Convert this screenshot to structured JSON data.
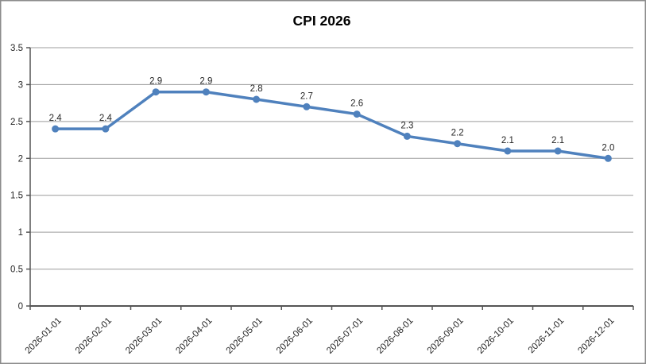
{
  "chart_data": {
    "type": "line",
    "title": "CPI 2026",
    "categories": [
      "2026-01-01",
      "2026-02-01",
      "2026-03-01",
      "2026-04-01",
      "2026-05-01",
      "2026-06-01",
      "2026-07-01",
      "2026-08-01",
      "2026-09-01",
      "2026-10-01",
      "2026-11-01",
      "2026-12-01"
    ],
    "values": [
      2.4,
      2.4,
      2.9,
      2.9,
      2.8,
      2.7,
      2.6,
      2.3,
      2.2,
      2.1,
      2.1,
      2.0
    ],
    "point_labels": [
      "2.4",
      "2.4",
      "2.9",
      "2.9",
      "2.8",
      "2.7",
      "2.6",
      "2.3",
      "2.2",
      "2.1",
      "2.1",
      "2.0"
    ],
    "xlabel": "",
    "ylabel": "",
    "ylim": [
      0,
      3.5
    ],
    "y_tick_step": 0.5,
    "y_tick_labels": [
      "0",
      "0.5",
      "1",
      "1.5",
      "2",
      "2.5",
      "3",
      "3.5"
    ],
    "x_label_rotation": -45,
    "grid": "horizontal",
    "legend": "none",
    "marker": "circle",
    "style": {
      "series_color": "#4F81BD",
      "gridline_color": "#9C9C9C",
      "axis_color": "#555555",
      "text_color": "#262626",
      "title_color": "#000000",
      "border_color": "#8C8C8C",
      "background_color": "#FFFFFF"
    }
  }
}
